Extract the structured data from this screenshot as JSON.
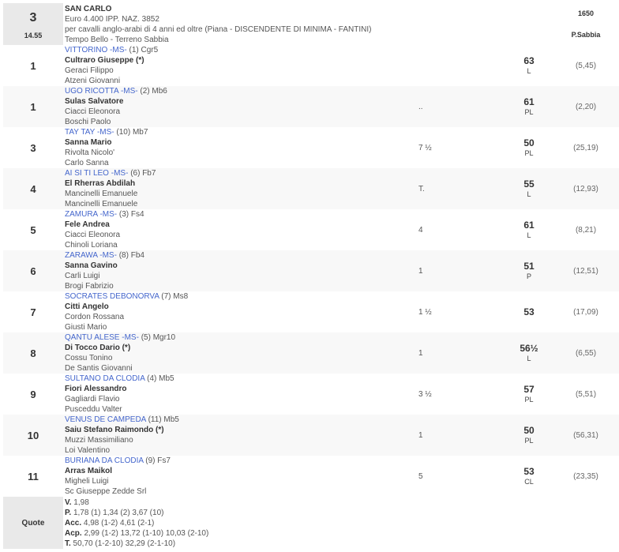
{
  "race": {
    "number": "3",
    "time": "14.55",
    "name": "SAN CARLO",
    "prize": "Euro 4.400 IPP. NAZ. 3852",
    "conditions": "per cavalli anglo-arabi di 4 anni ed oltre (Piana -  DISCENDENTE DI MINIMA  - FANTINI)",
    "weather": "Tempo Bello - Terreno Sabbia",
    "distance": "1650",
    "track": "P.Sabbia"
  },
  "runners": [
    {
      "pos": "1",
      "horse": "VITTORINO",
      "tag": "-MS-",
      "extra": "(1) Cgr5",
      "jockey": "Cultraro Giuseppe (*)",
      "trainer": "Geraci Filippo",
      "owner": "Atzeni Giovanni",
      "distance": "",
      "weight": "63",
      "weight_note": "L",
      "odds": "(5,45)"
    },
    {
      "pos": "1",
      "horse": "UGO RICOTTA",
      "tag": "-MS-",
      "extra": "(2) Mb6",
      "jockey": "Sulas Salvatore",
      "trainer": "Ciacci Eleonora",
      "owner": "Boschi Paolo",
      "distance": "..",
      "weight": "61",
      "weight_note": "PL",
      "odds": "(2,20)"
    },
    {
      "pos": "3",
      "horse": "TAY TAY",
      "tag": "-MS-",
      "extra": "(10) Mb7",
      "jockey": "Sanna Mario",
      "trainer": "Rivolta Nicolo'",
      "owner": "Carlo Sanna",
      "distance": "7 ½",
      "weight": "50",
      "weight_note": "PL",
      "odds": "(25,19)"
    },
    {
      "pos": "4",
      "horse": "AI SI TI LEO",
      "tag": "-MS-",
      "extra": "(6) Fb7",
      "jockey": "El Rherras Abdilah",
      "trainer": "Mancinelli Emanuele",
      "owner": "Mancinelli Emanuele",
      "distance": "T.",
      "weight": "55",
      "weight_note": "L",
      "odds": "(12,93)"
    },
    {
      "pos": "5",
      "horse": "ZAMURA",
      "tag": "-MS-",
      "extra": "(3) Fs4",
      "jockey": "Fele Andrea",
      "trainer": "Ciacci Eleonora",
      "owner": "Chinoli Loriana",
      "distance": "4",
      "weight": "61",
      "weight_note": "L",
      "odds": "(8,21)"
    },
    {
      "pos": "6",
      "horse": "ZARAWA",
      "tag": "-MS-",
      "extra": "(8) Fb4",
      "jockey": "Sanna Gavino",
      "trainer": "Carli Luigi",
      "owner": "Brogi Fabrizio",
      "distance": "1",
      "weight": "51",
      "weight_note": "P",
      "odds": "(12,51)"
    },
    {
      "pos": "7",
      "horse": "SOCRATES DEBONORVA",
      "tag": "",
      "extra": "(7) Ms8",
      "jockey": "Citti Angelo",
      "trainer": "Cordon Rossana",
      "owner": "Giusti Mario",
      "distance": "1 ½",
      "weight": "53",
      "weight_note": "",
      "odds": "(17,09)"
    },
    {
      "pos": "8",
      "horse": "QANTU ALESE",
      "tag": "-MS-",
      "extra": "(5) Mgr10",
      "jockey": "Di Tocco Dario (*)",
      "trainer": "Cossu Tonino",
      "owner": "De Santis Giovanni",
      "distance": "1",
      "weight": "56½",
      "weight_note": "L",
      "odds": "(6,55)"
    },
    {
      "pos": "9",
      "horse": "SULTANO DA CLODIA",
      "tag": "",
      "extra": "(4) Mb5",
      "jockey": "Fiori Alessandro",
      "trainer": "Gagliardi Flavio",
      "owner": "Pusceddu Valter",
      "distance": "3 ½",
      "weight": "57",
      "weight_note": "PL",
      "odds": "(5,51)"
    },
    {
      "pos": "10",
      "horse": "VENUS DE CAMPEDA",
      "tag": "",
      "extra": "(11) Mb5",
      "jockey": "Saiu Stefano Raimondo (*)",
      "trainer": "Muzzi Massimiliano",
      "owner": "Loi Valentino",
      "distance": "1",
      "weight": "50",
      "weight_note": "PL",
      "odds": "(56,31)"
    },
    {
      "pos": "11",
      "horse": "BURIANA DA CLODIA",
      "tag": "",
      "extra": "(9) Fs7",
      "jockey": "Arras Maikol",
      "trainer": "Migheli Luigi",
      "owner": "Sc Giuseppe Zedde Srl",
      "distance": "5",
      "weight": "53",
      "weight_note": "CL",
      "odds": "(23,35)"
    }
  ],
  "quote": {
    "label": "Quote",
    "lines": [
      {
        "key": "V.",
        "value": " 1,98"
      },
      {
        "key": "P.",
        "value": " 1,78 (1)  1,34 (2)  3,67 (10)"
      },
      {
        "key": "Acc.",
        "value": " 4,98 (1-2)  4,61 (2-1)"
      },
      {
        "key": "Acp.",
        "value": " 2,99 (1-2)  13,72 (1-10)  10,03 (2-10)"
      },
      {
        "key": "T.",
        "value": " 50,70 (1-2-10)  32,29 (2-1-10)"
      }
    ]
  },
  "colors": {
    "horse_link": "#4466cc",
    "label_cell": "#e9e9e9",
    "alt_row": "#f8f8f8"
  }
}
